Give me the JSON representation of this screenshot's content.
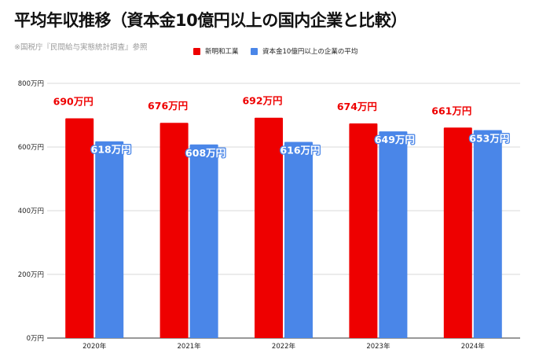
{
  "header": {
    "title": "平均年収推移（資本金10億円以上の国内企業と比較）",
    "source": "※国税庁『民間給与実態統計調査』参照"
  },
  "chart_data": {
    "type": "bar",
    "categories": [
      "2020年",
      "2021年",
      "2022年",
      "2023年",
      "2024年"
    ],
    "series": [
      {
        "name": "新明和工業",
        "values": [
          690,
          676,
          692,
          674,
          661
        ],
        "labels": [
          "690万円",
          "676万円",
          "692万円",
          "674万円",
          "661万円"
        ],
        "color": "#ee0000"
      },
      {
        "name": "資本金10億円以上の企業の平均",
        "values": [
          618,
          608,
          616,
          649,
          653
        ],
        "labels": [
          "618万円",
          "608万円",
          "616万円",
          "649万円",
          "653万円"
        ],
        "color": "#4a86e8"
      }
    ],
    "ylim": [
      0,
      800
    ],
    "yticks": [
      0,
      200,
      400,
      600,
      800
    ],
    "ytick_labels": [
      "0万円",
      "200万円",
      "400万円",
      "600万円",
      "800万円"
    ],
    "grid": true,
    "legend": "top-center"
  }
}
